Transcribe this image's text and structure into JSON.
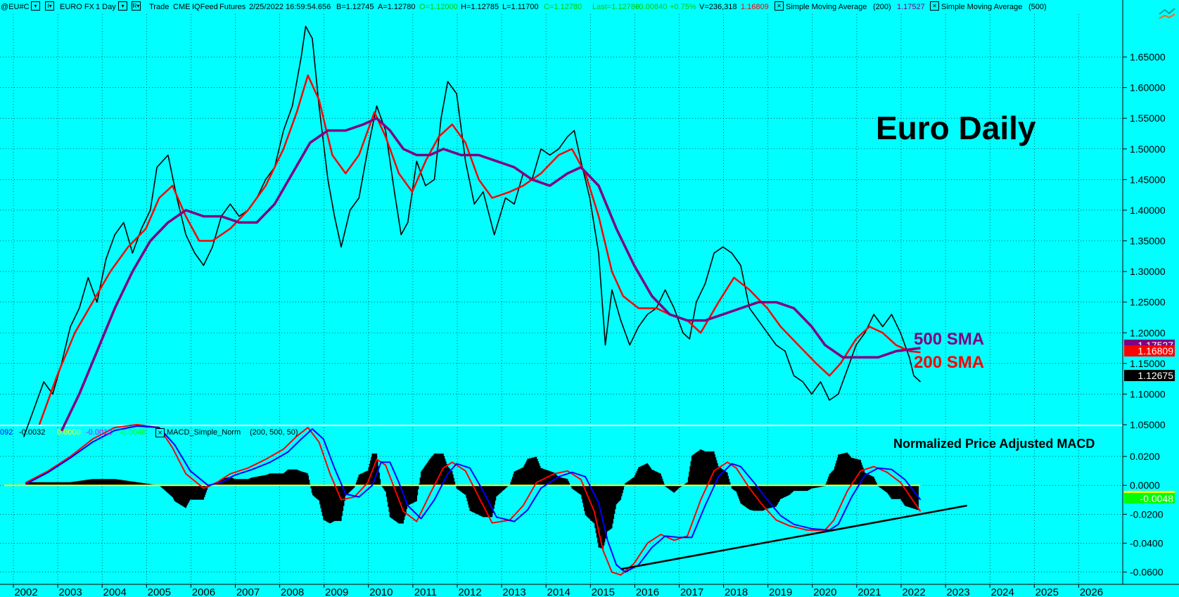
{
  "header": {
    "symbol": "@EU#C",
    "instrument": "EURO FX",
    "interval": "1 Day",
    "mode": "Trade",
    "exchange": "CME",
    "feed": "IQFeed",
    "type": "Futures",
    "datetime": "2/25/2022  16:59:54.656",
    "bid": "B=1.12745",
    "ask": "A=1.12780",
    "open": "O=1.12000",
    "high": "H=1.12785",
    "low": "L=1.11700",
    "close": "C=1.12780",
    "last": "Last=1.12780",
    "change": "+0.00840",
    "change_pct": "+0.75%",
    "volume": "V=236,318",
    "sma200_value": "1.16809",
    "study1": "Simple Moving Average",
    "study1_param": "(200)",
    "sma500_value": "1.17527",
    "study2": "Simple Moving Average",
    "study2_param": "(500)"
  },
  "macd_header": {
    "v1": "092",
    "v2": "-0.0032",
    "v3": "0.0000",
    "v4": "-0.0012",
    "v5": "-0.0048",
    "study": "MACD_Simple_Norm",
    "params": "(200,  500,  50)"
  },
  "annotations": {
    "title": "Euro Daily",
    "sma500_label": "500 SMA",
    "sma200_label": "200 SMA",
    "macd_title": "Normalized Price Adjusted MACD"
  },
  "price_labels": {
    "sma500": "1.17527",
    "sma200": "1.16809",
    "last": "1.12675",
    "macd": "-0.0048"
  },
  "colors": {
    "background": "#00ffff",
    "price": "#000000",
    "sma200": "#ff0000",
    "sma500": "#800080",
    "macd_fast": "#ff0000",
    "macd_slow": "#0000ff",
    "macd_signal_purple": "#cc00ff",
    "macd_signal_green": "#00ff00",
    "macd_zero": "#ffff00",
    "trendline": "#000000"
  },
  "chart_data": [
    {
      "type": "line",
      "panel": "price",
      "title": "Euro Daily",
      "x_ticks": [
        "2002",
        "2003",
        "2004",
        "2005",
        "2006",
        "2007",
        "2008",
        "2009",
        "2010",
        "2011",
        "2012",
        "2013",
        "2014",
        "2015",
        "2016",
        "2017",
        "2018",
        "2019",
        "2020",
        "2021",
        "2022",
        "2023",
        "2024",
        "2025",
        "2026"
      ],
      "y_ticks": [
        "1.05000",
        "1.10000",
        "1.15000",
        "1.20000",
        "1.25000",
        "1.30000",
        "1.35000",
        "1.40000",
        "1.45000",
        "1.50000",
        "1.55000",
        "1.60000",
        "1.65000"
      ],
      "ylim": [
        1.05,
        1.72
      ],
      "series": [
        {
          "name": "",
          "color": "#000000",
          "x": [
            2001.95,
            2002.2,
            2002.4,
            2002.6,
            2002.8,
            2003.0,
            2003.2,
            2003.4,
            2003.6,
            2003.8,
            2004.0,
            2004.2,
            2004.4,
            2004.6,
            2004.8,
            2004.95,
            2005.2,
            2005.4,
            2005.6,
            2005.8,
            2006.0,
            2006.2,
            2006.4,
            2006.6,
            2006.8,
            2007.0,
            2007.2,
            2007.4,
            2007.6,
            2007.8,
            2008.0,
            2008.2,
            2008.3,
            2008.45,
            2008.6,
            2008.8,
            2008.95,
            2009.1,
            2009.3,
            2009.5,
            2009.7,
            2009.9,
            2010.1,
            2010.3,
            2010.45,
            2010.6,
            2010.8,
            2011.0,
            2011.2,
            2011.35,
            2011.5,
            2011.7,
            2011.9,
            2012.1,
            2012.3,
            2012.55,
            2012.8,
            2013.0,
            2013.2,
            2013.4,
            2013.6,
            2013.8,
            2014.0,
            2014.2,
            2014.35,
            2014.5,
            2014.7,
            2014.9,
            2015.05,
            2015.2,
            2015.4,
            2015.6,
            2015.8,
            2016.0,
            2016.2,
            2016.4,
            2016.6,
            2016.8,
            2016.95,
            2017.1,
            2017.3,
            2017.5,
            2017.7,
            2017.9,
            2018.1,
            2018.3,
            2018.5,
            2018.7,
            2018.9,
            2019.1,
            2019.3,
            2019.5,
            2019.7,
            2019.9,
            2020.1,
            2020.3,
            2020.5,
            2020.7,
            2020.9,
            2021.1,
            2021.3,
            2021.5,
            2021.7,
            2021.9,
            2022.0,
            2022.15
          ],
          "y": [
            1.03,
            1.08,
            1.12,
            1.1,
            1.15,
            1.21,
            1.24,
            1.29,
            1.25,
            1.32,
            1.36,
            1.38,
            1.33,
            1.37,
            1.4,
            1.47,
            1.49,
            1.42,
            1.36,
            1.33,
            1.31,
            1.34,
            1.39,
            1.41,
            1.39,
            1.4,
            1.42,
            1.45,
            1.47,
            1.53,
            1.57,
            1.65,
            1.7,
            1.68,
            1.57,
            1.45,
            1.39,
            1.34,
            1.4,
            1.42,
            1.5,
            1.57,
            1.53,
            1.43,
            1.36,
            1.38,
            1.48,
            1.44,
            1.45,
            1.55,
            1.61,
            1.59,
            1.48,
            1.41,
            1.43,
            1.36,
            1.42,
            1.41,
            1.46,
            1.45,
            1.5,
            1.49,
            1.5,
            1.52,
            1.53,
            1.48,
            1.42,
            1.33,
            1.18,
            1.27,
            1.22,
            1.18,
            1.21,
            1.23,
            1.24,
            1.27,
            1.24,
            1.2,
            1.19,
            1.25,
            1.28,
            1.33,
            1.34,
            1.33,
            1.31,
            1.24,
            1.22,
            1.2,
            1.18,
            1.17,
            1.13,
            1.12,
            1.1,
            1.12,
            1.09,
            1.1,
            1.14,
            1.18,
            1.2,
            1.23,
            1.21,
            1.23,
            1.2,
            1.16,
            1.13,
            1.12
          ]
        },
        {
          "name": "200 SMA",
          "color": "#ff0000",
          "x": [
            2002.3,
            2002.7,
            2003.1,
            2003.5,
            2003.9,
            2004.3,
            2004.7,
            2005.0,
            2005.3,
            2005.6,
            2005.9,
            2006.2,
            2006.6,
            2007.0,
            2007.4,
            2007.8,
            2008.1,
            2008.35,
            2008.6,
            2008.9,
            2009.2,
            2009.5,
            2009.85,
            2010.1,
            2010.4,
            2010.7,
            2011.0,
            2011.3,
            2011.6,
            2011.9,
            2012.2,
            2012.5,
            2012.9,
            2013.2,
            2013.6,
            2014.0,
            2014.3,
            2014.6,
            2014.9,
            2015.2,
            2015.45,
            2015.8,
            2016.2,
            2016.5,
            2016.9,
            2017.2,
            2017.6,
            2017.95,
            2018.3,
            2018.7,
            2019.0,
            2019.4,
            2019.8,
            2020.1,
            2020.35,
            2020.7,
            2021.0,
            2021.3,
            2021.6,
            2021.9,
            2022.15
          ],
          "y": [
            1.05,
            1.13,
            1.2,
            1.25,
            1.3,
            1.34,
            1.37,
            1.42,
            1.44,
            1.39,
            1.35,
            1.35,
            1.37,
            1.4,
            1.44,
            1.5,
            1.56,
            1.62,
            1.58,
            1.49,
            1.46,
            1.49,
            1.56,
            1.52,
            1.46,
            1.43,
            1.48,
            1.52,
            1.54,
            1.51,
            1.45,
            1.42,
            1.43,
            1.44,
            1.46,
            1.49,
            1.5,
            1.46,
            1.39,
            1.3,
            1.26,
            1.24,
            1.24,
            1.23,
            1.22,
            1.2,
            1.25,
            1.29,
            1.27,
            1.24,
            1.21,
            1.18,
            1.15,
            1.13,
            1.15,
            1.19,
            1.21,
            1.2,
            1.18,
            1.17,
            1.168
          ]
        },
        {
          "name": "500 SMA",
          "color": "#800080",
          "x": [
            2002.8,
            2003.2,
            2003.6,
            2004.0,
            2004.4,
            2004.8,
            2005.2,
            2005.6,
            2006.0,
            2006.4,
            2006.8,
            2007.2,
            2007.6,
            2008.0,
            2008.4,
            2008.8,
            2009.2,
            2009.6,
            2009.9,
            2010.2,
            2010.5,
            2010.8,
            2011.1,
            2011.4,
            2011.8,
            2012.2,
            2012.6,
            2013.0,
            2013.4,
            2013.8,
            2014.2,
            2014.5,
            2014.9,
            2015.3,
            2015.7,
            2016.1,
            2016.5,
            2016.9,
            2017.3,
            2017.7,
            2018.1,
            2018.5,
            2018.9,
            2019.3,
            2019.7,
            2020.0,
            2020.4,
            2020.8,
            2021.2,
            2021.6,
            2022.15
          ],
          "y": [
            1.04,
            1.1,
            1.17,
            1.24,
            1.3,
            1.35,
            1.38,
            1.4,
            1.39,
            1.39,
            1.38,
            1.38,
            1.41,
            1.46,
            1.51,
            1.53,
            1.53,
            1.54,
            1.55,
            1.53,
            1.5,
            1.49,
            1.49,
            1.5,
            1.49,
            1.49,
            1.48,
            1.47,
            1.45,
            1.44,
            1.46,
            1.47,
            1.44,
            1.37,
            1.31,
            1.26,
            1.23,
            1.22,
            1.22,
            1.23,
            1.24,
            1.25,
            1.25,
            1.24,
            1.21,
            1.18,
            1.16,
            1.16,
            1.16,
            1.17,
            1.175
          ]
        }
      ]
    },
    {
      "type": "line",
      "panel": "indicator",
      "title": "Normalized Price Adjusted MACD",
      "y_ticks": [
        "-0.0600",
        "-0.0400",
        "-0.0200",
        "0.0000",
        "0.0200"
      ],
      "ylim": [
        -0.068,
        0.04
      ],
      "series": [
        {
          "name": "MACD",
          "color": "#ff0000",
          "x": [
            2002.0,
            2002.5,
            2003.0,
            2003.5,
            2004.0,
            2004.5,
            2005.0,
            2005.3,
            2005.6,
            2006.0,
            2006.3,
            2006.6,
            2007.0,
            2007.4,
            2007.8,
            2008.1,
            2008.35,
            2008.6,
            2008.85,
            2009.1,
            2009.4,
            2009.7,
            2009.9,
            2010.1,
            2010.3,
            2010.5,
            2010.8,
            2011.1,
            2011.4,
            2011.6,
            2011.9,
            2012.2,
            2012.5,
            2012.9,
            2013.2,
            2013.5,
            2013.9,
            2014.2,
            2014.5,
            2014.8,
            2015.0,
            2015.2,
            2015.4,
            2015.7,
            2016.0,
            2016.3,
            2016.6,
            2016.9,
            2017.2,
            2017.5,
            2017.8,
            2018.0,
            2018.3,
            2018.6,
            2018.9,
            2019.2,
            2019.6,
            2020.0,
            2020.2,
            2020.5,
            2020.8,
            2021.1,
            2021.4,
            2021.7,
            2022.15
          ],
          "y": [
            0.002,
            0.01,
            0.02,
            0.032,
            0.04,
            0.042,
            0.04,
            0.026,
            0.008,
            -0.002,
            0.002,
            0.008,
            0.012,
            0.018,
            0.025,
            0.034,
            0.04,
            0.03,
            0.008,
            -0.01,
            -0.008,
            0.002,
            0.018,
            0.014,
            -0.002,
            -0.018,
            -0.025,
            -0.006,
            0.012,
            0.016,
            0.01,
            -0.008,
            -0.026,
            -0.024,
            -0.014,
            0.002,
            0.008,
            0.01,
            0.004,
            -0.018,
            -0.045,
            -0.06,
            -0.062,
            -0.054,
            -0.04,
            -0.034,
            -0.038,
            -0.035,
            -0.01,
            0.01,
            0.016,
            0.012,
            -0.002,
            -0.014,
            -0.024,
            -0.028,
            -0.031,
            -0.031,
            -0.024,
            -0.004,
            0.01,
            0.013,
            0.009,
            0.002,
            -0.018
          ]
        },
        {
          "name": "Signal",
          "color": "#0000ff",
          "x": [
            2002.0,
            2002.5,
            2003.0,
            2003.5,
            2004.0,
            2004.5,
            2005.0,
            2005.35,
            2005.7,
            2006.1,
            2006.4,
            2006.7,
            2007.1,
            2007.5,
            2007.9,
            2008.2,
            2008.45,
            2008.7,
            2008.95,
            2009.2,
            2009.5,
            2009.8,
            2010.0,
            2010.2,
            2010.4,
            2010.6,
            2010.9,
            2011.2,
            2011.5,
            2011.7,
            2012.0,
            2012.3,
            2012.6,
            2013.0,
            2013.3,
            2013.6,
            2014.0,
            2014.3,
            2014.6,
            2014.9,
            2015.1,
            2015.3,
            2015.5,
            2015.8,
            2016.1,
            2016.4,
            2016.7,
            2017.0,
            2017.3,
            2017.6,
            2017.9,
            2018.1,
            2018.4,
            2018.7,
            2019.0,
            2019.3,
            2019.7,
            2020.1,
            2020.3,
            2020.6,
            2020.9,
            2021.2,
            2021.5,
            2021.8,
            2022.15
          ],
          "y": [
            0.001,
            0.009,
            0.019,
            0.03,
            0.038,
            0.041,
            0.04,
            0.028,
            0.01,
            0.0,
            0.002,
            0.007,
            0.011,
            0.016,
            0.023,
            0.032,
            0.039,
            0.032,
            0.012,
            -0.006,
            -0.008,
            0.0,
            0.016,
            0.016,
            0.002,
            -0.014,
            -0.023,
            -0.01,
            0.008,
            0.015,
            0.012,
            -0.004,
            -0.022,
            -0.025,
            -0.017,
            -0.002,
            0.006,
            0.009,
            0.006,
            -0.012,
            -0.038,
            -0.055,
            -0.06,
            -0.055,
            -0.043,
            -0.035,
            -0.036,
            -0.036,
            -0.014,
            0.006,
            0.015,
            0.013,
            0.002,
            -0.01,
            -0.021,
            -0.027,
            -0.03,
            -0.031,
            -0.027,
            -0.008,
            0.007,
            0.012,
            0.011,
            0.004,
            -0.01
          ]
        },
        {
          "name": "Zero",
          "color": "#ffff00",
          "x": [
            2001.5,
            2022.15
          ],
          "y": [
            0.0,
            0.0
          ]
        },
        {
          "name": "Trend",
          "color": "#000000",
          "x": [
            2015.4,
            2023.2
          ],
          "y": [
            -0.058,
            -0.014
          ]
        }
      ]
    }
  ]
}
